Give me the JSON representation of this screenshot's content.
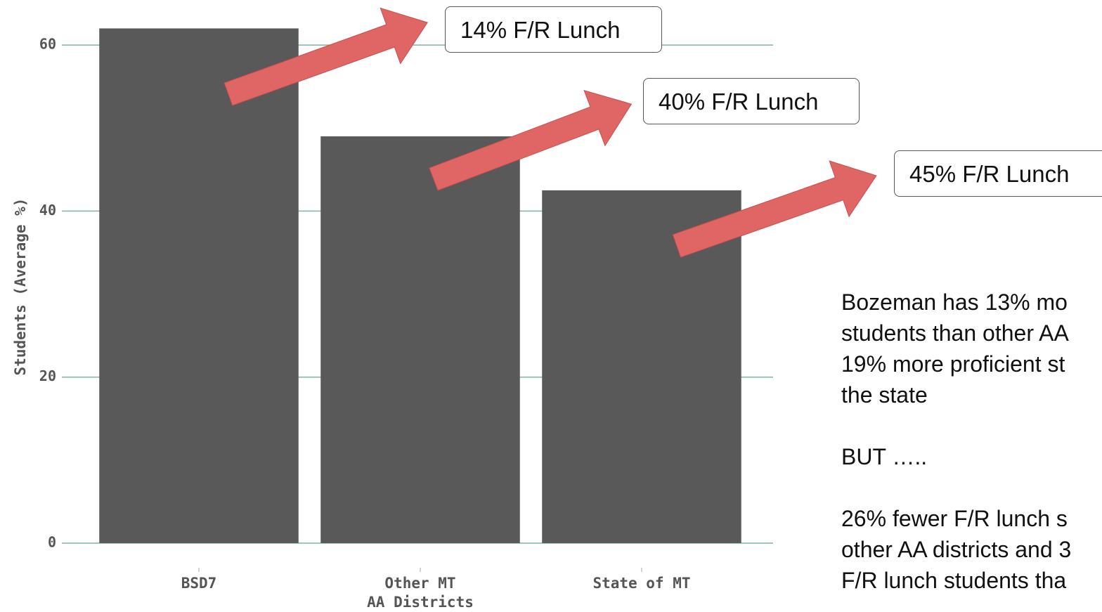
{
  "chart_data": {
    "type": "bar",
    "categories": [
      "BSD7",
      "Other MT\nAA Districts",
      "State of MT"
    ],
    "values": [
      62,
      49,
      42.5
    ],
    "color": "#595959",
    "y_label": "Students (Average %)",
    "ylim": [
      0,
      65
    ],
    "yticks": [
      0,
      20,
      40,
      60
    ],
    "grid": true,
    "annotations": [
      "14% F/R Lunch",
      "40% F/R Lunch",
      "45% F/R Lunch"
    ],
    "notes": [
      [
        "Bozeman has 13% mo",
        "students than other AA",
        "19% more proficient st",
        "the state"
      ],
      [
        "BUT ….."
      ],
      [
        "26% fewer F/R lunch s",
        "other AA districts and 3",
        "F/R lunch students tha"
      ]
    ]
  }
}
